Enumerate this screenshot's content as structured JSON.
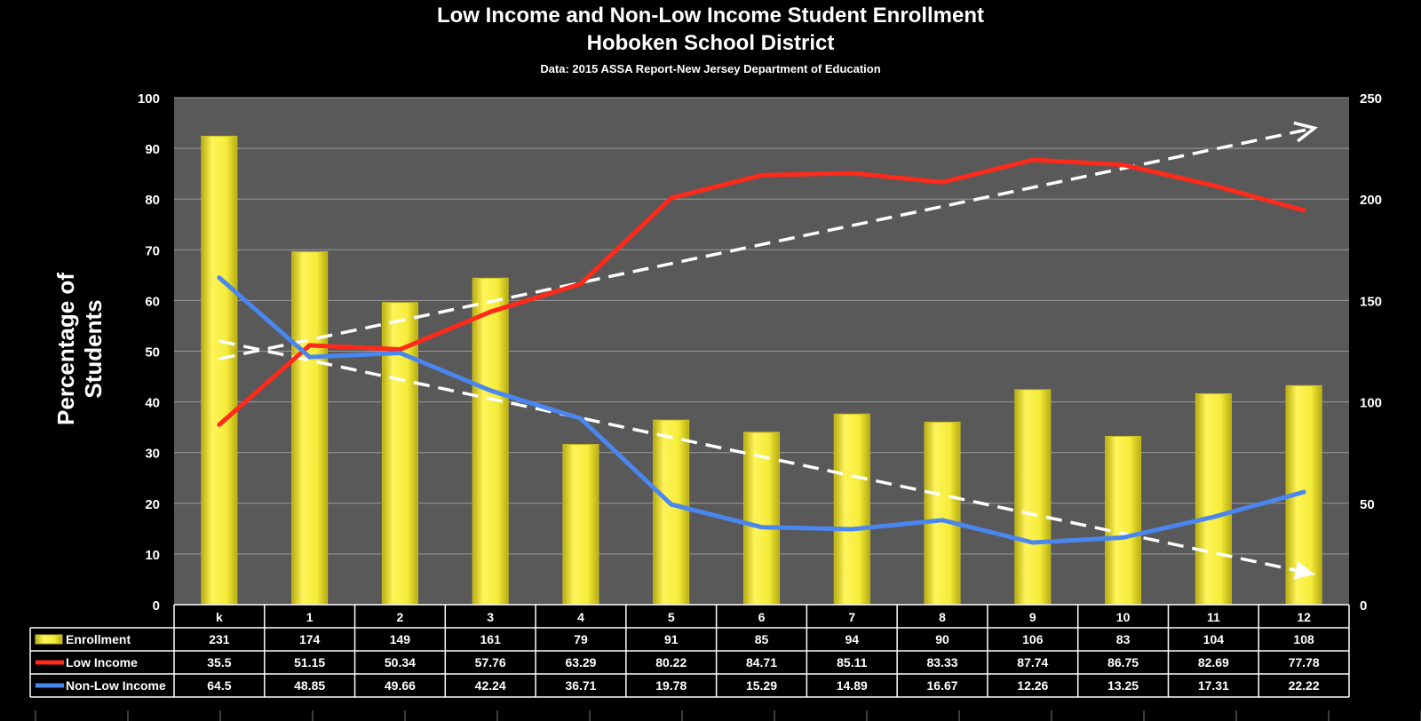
{
  "chart_data": {
    "type": "bar",
    "title": "Low Income and Non-Low Income Student Enrollment",
    "subtitle": "Hoboken School District",
    "source": "Data: 2015 ASSA Report-New Jersey Department of Education",
    "ylabel": "Percentage of Students",
    "ylim": [
      0,
      100
    ],
    "y2lim": [
      0,
      250
    ],
    "yticks": [
      "0",
      "10",
      "20",
      "30",
      "40",
      "50",
      "60",
      "70",
      "80",
      "90",
      "100"
    ],
    "y2ticks": [
      "0",
      "50",
      "100",
      "150",
      "200",
      "250"
    ],
    "categories": [
      "k",
      "1",
      "2",
      "3",
      "4",
      "5",
      "6",
      "7",
      "8",
      "9",
      "10",
      "11",
      "12"
    ],
    "series": [
      {
        "name": "Enrollment",
        "type": "bar",
        "axis": "right",
        "color": "#f5ec3a",
        "values": [
          231,
          174,
          149,
          161,
          79,
          91,
          85,
          94,
          90,
          106,
          83,
          104,
          108
        ]
      },
      {
        "name": "Low Income",
        "type": "line",
        "axis": "left",
        "color": "#ff2a1a",
        "values": [
          35.5,
          51.15,
          50.34,
          57.76,
          63.29,
          80.22,
          84.71,
          85.11,
          83.33,
          87.74,
          86.75,
          82.69,
          77.78
        ]
      },
      {
        "name": "Non-Low Income",
        "type": "line",
        "axis": "left",
        "color": "#4a86f0",
        "values": [
          64.5,
          48.85,
          49.66,
          42.24,
          36.71,
          19.78,
          15.29,
          14.89,
          16.67,
          12.26,
          13.25,
          17.31,
          22.22
        ]
      }
    ],
    "trendlines": [
      {
        "style": "dashed-arrow",
        "color": "#ffffff",
        "from": [
          "k",
          48.5
        ],
        "to": [
          "12",
          94
        ]
      },
      {
        "style": "dashed-arrow",
        "color": "#ffffff",
        "from": [
          "k",
          52
        ],
        "to": [
          "12",
          6
        ]
      }
    ],
    "legend": "data-table-below",
    "grid": true,
    "plot_background": "#595959"
  }
}
